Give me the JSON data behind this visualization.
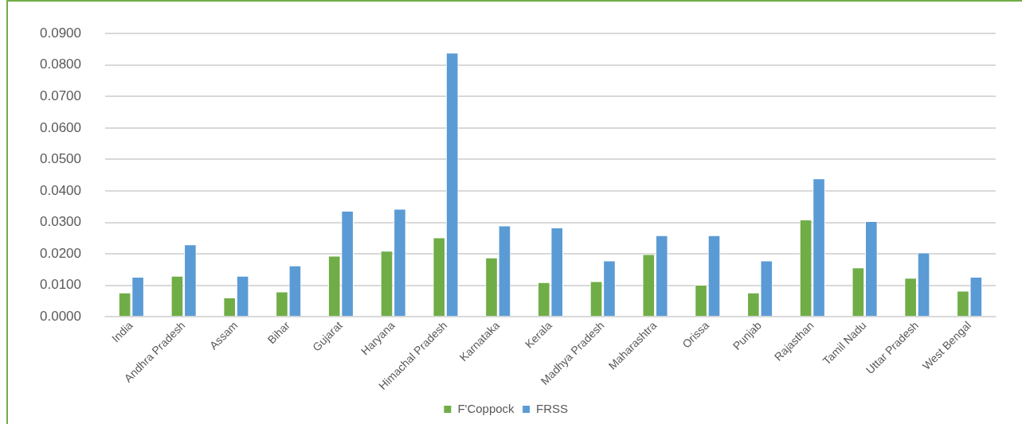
{
  "chart_data": {
    "type": "bar",
    "categories": [
      "India",
      "Andhra Pradesh",
      "Assam",
      "Bihar",
      "Gujarat",
      "Haryana",
      "Himachal Pradesh",
      "Karnataka",
      "Kerala",
      "Madhya Pradesh",
      "Maharashtra",
      "Orissa",
      "Punjab",
      "Rajasthan",
      "Tamil Nadu",
      "Uttar Pradesh",
      "West Bengal"
    ],
    "series": [
      {
        "name": "F'Coppock",
        "color": "#70ad47",
        "values": [
          0.0077,
          0.013,
          0.0061,
          0.008,
          0.0194,
          0.021,
          0.0252,
          0.0188,
          0.011,
          0.0113,
          0.0199,
          0.0102,
          0.0077,
          0.0309,
          0.0157,
          0.0124,
          0.0083
        ]
      },
      {
        "name": "FRSS",
        "color": "#5b9bd5",
        "values": [
          0.0127,
          0.023,
          0.013,
          0.0163,
          0.0337,
          0.0343,
          0.0839,
          0.029,
          0.0284,
          0.0179,
          0.0259,
          0.0259,
          0.0179,
          0.044,
          0.0304,
          0.0204,
          0.0127
        ]
      }
    ],
    "ylim": [
      0,
      0.09
    ],
    "yticks": [
      {
        "value": 0,
        "label": "0.0000"
      },
      {
        "value": 0.01,
        "label": "0.0100"
      },
      {
        "value": 0.02,
        "label": "0.0200"
      },
      {
        "value": 0.03,
        "label": "0.0300"
      },
      {
        "value": 0.04,
        "label": "0.0400"
      },
      {
        "value": 0.05,
        "label": "0.0500"
      },
      {
        "value": 0.06,
        "label": "0.0600"
      },
      {
        "value": 0.07,
        "label": "0.0700"
      },
      {
        "value": 0.08,
        "label": "0.0800"
      },
      {
        "value": 0.09,
        "label": "0.0900"
      }
    ],
    "grid": "y",
    "legend": "bottom"
  }
}
